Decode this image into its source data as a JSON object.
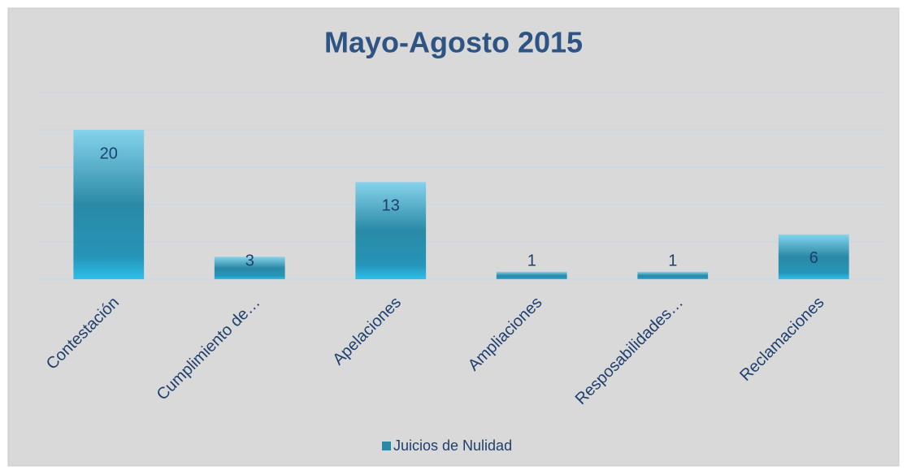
{
  "chart_data": {
    "type": "bar",
    "title": "Mayo-Agosto 2015",
    "categories": [
      "Contestación",
      "Cumplimiento de…",
      "Apelaciones",
      "Ampliaciones",
      "Resposabilidades…",
      "Reclamaciones"
    ],
    "series": [
      {
        "name": "Juicios de Nulidad",
        "color": "#2a8aa6",
        "values": [
          20,
          3,
          13,
          1,
          1,
          6
        ]
      }
    ],
    "ylim": [
      0,
      25
    ],
    "yticks": [
      0,
      5,
      10,
      15,
      20,
      25
    ],
    "grid": true,
    "legend": "bottom"
  }
}
